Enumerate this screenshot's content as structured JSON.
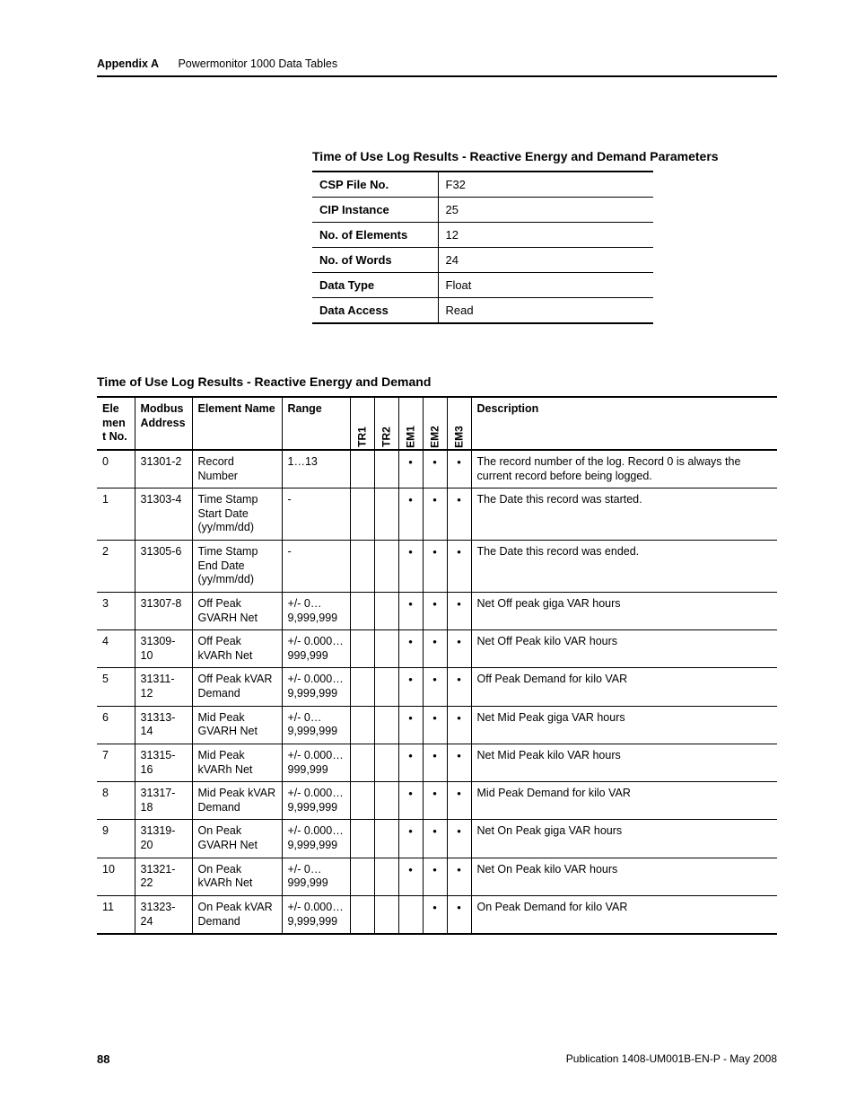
{
  "header": {
    "appendix": "Appendix A",
    "chapter": "Powermonitor 1000 Data Tables"
  },
  "title1": "Time of Use Log Results - Reactive Energy and Demand Parameters",
  "paramsTable": [
    {
      "key": "CSP File No.",
      "val": "F32"
    },
    {
      "key": "CIP Instance",
      "val": "25"
    },
    {
      "key": "No. of Elements",
      "val": "12"
    },
    {
      "key": "No. of Words",
      "val": "24"
    },
    {
      "key": "Data Type",
      "val": "Float"
    },
    {
      "key": "Data Access",
      "val": "Read"
    }
  ],
  "title2": "Time of Use Log Results - Reactive Energy and Demand",
  "mainHeaders": {
    "elno": "Element No.",
    "modbus": "Modbus Address",
    "elname": "Element Name",
    "range": "Range",
    "tr1": "TR1",
    "tr2": "TR2",
    "em1": "EM1",
    "em2": "EM2",
    "em3": "EM3",
    "desc": "Description"
  },
  "rows": [
    {
      "no": "0",
      "addr": "31301-2",
      "name": "Record Number",
      "range": "1…13",
      "tr1": "",
      "tr2": "",
      "em1": "•",
      "em2": "•",
      "em3": "•",
      "desc": "The record number of the log. Record 0 is always the current record before being logged."
    },
    {
      "no": "1",
      "addr": "31303-4",
      "name": "Time Stamp Start Date (yy/mm/dd)",
      "range": "-",
      "tr1": "",
      "tr2": "",
      "em1": "•",
      "em2": "•",
      "em3": "•",
      "desc": "The Date this record was started."
    },
    {
      "no": "2",
      "addr": "31305-6",
      "name": "Time Stamp End Date (yy/mm/dd)",
      "range": "-",
      "tr1": "",
      "tr2": "",
      "em1": "•",
      "em2": "•",
      "em3": "•",
      "desc": "The Date this record was ended."
    },
    {
      "no": "3",
      "addr": "31307-8",
      "name": "Off Peak GVARH Net",
      "range": "+/- 0… 9,999,999",
      "tr1": "",
      "tr2": "",
      "em1": "•",
      "em2": "•",
      "em3": "•",
      "desc": "Net Off peak giga VAR hours"
    },
    {
      "no": "4",
      "addr": "31309-10",
      "name": "Off Peak kVARh Net",
      "range": "+/- 0.000… 999,999",
      "tr1": "",
      "tr2": "",
      "em1": "•",
      "em2": "•",
      "em3": "•",
      "desc": "Net Off Peak kilo VAR hours"
    },
    {
      "no": "5",
      "addr": "31311-12",
      "name": "Off Peak kVAR Demand",
      "range": "+/- 0.000… 9,999,999",
      "tr1": "",
      "tr2": "",
      "em1": "•",
      "em2": "•",
      "em3": "•",
      "desc": "Off Peak Demand for kilo VAR"
    },
    {
      "no": "6",
      "addr": "31313-14",
      "name": "Mid Peak GVARH Net",
      "range": "+/- 0… 9,999,999",
      "tr1": "",
      "tr2": "",
      "em1": "•",
      "em2": "•",
      "em3": "•",
      "desc": "Net Mid Peak giga VAR hours"
    },
    {
      "no": "7",
      "addr": "31315-16",
      "name": "Mid Peak kVARh Net",
      "range": "+/- 0.000… 999,999",
      "tr1": "",
      "tr2": "",
      "em1": "•",
      "em2": "•",
      "em3": "•",
      "desc": "Net Mid Peak kilo VAR hours"
    },
    {
      "no": "8",
      "addr": "31317-18",
      "name": "Mid Peak kVAR Demand",
      "range": "+/- 0.000… 9,999,999",
      "tr1": "",
      "tr2": "",
      "em1": "•",
      "em2": "•",
      "em3": "•",
      "desc": "Mid Peak Demand for kilo VAR"
    },
    {
      "no": "9",
      "addr": "31319-20",
      "name": "On Peak GVARH Net",
      "range": "+/- 0.000… 9,999,999",
      "tr1": "",
      "tr2": "",
      "em1": "•",
      "em2": "•",
      "em3": "•",
      "desc": "Net On Peak giga VAR hours"
    },
    {
      "no": "10",
      "addr": "31321-22",
      "name": "On Peak kVARh Net",
      "range": "+/- 0… 999,999",
      "tr1": "",
      "tr2": "",
      "em1": "•",
      "em2": "•",
      "em3": "•",
      "desc": "Net On Peak kilo VAR hours"
    },
    {
      "no": "11",
      "addr": "31323-24",
      "name": "On Peak kVAR Demand",
      "range": "+/- 0.000… 9,999,999",
      "tr1": "",
      "tr2": "",
      "em1": "",
      "em2": "•",
      "em3": "•",
      "desc": "On Peak Demand for kilo VAR"
    }
  ],
  "footer": {
    "page": "88",
    "pub": "Publication 1408-UM001B-EN-P - May 2008"
  }
}
